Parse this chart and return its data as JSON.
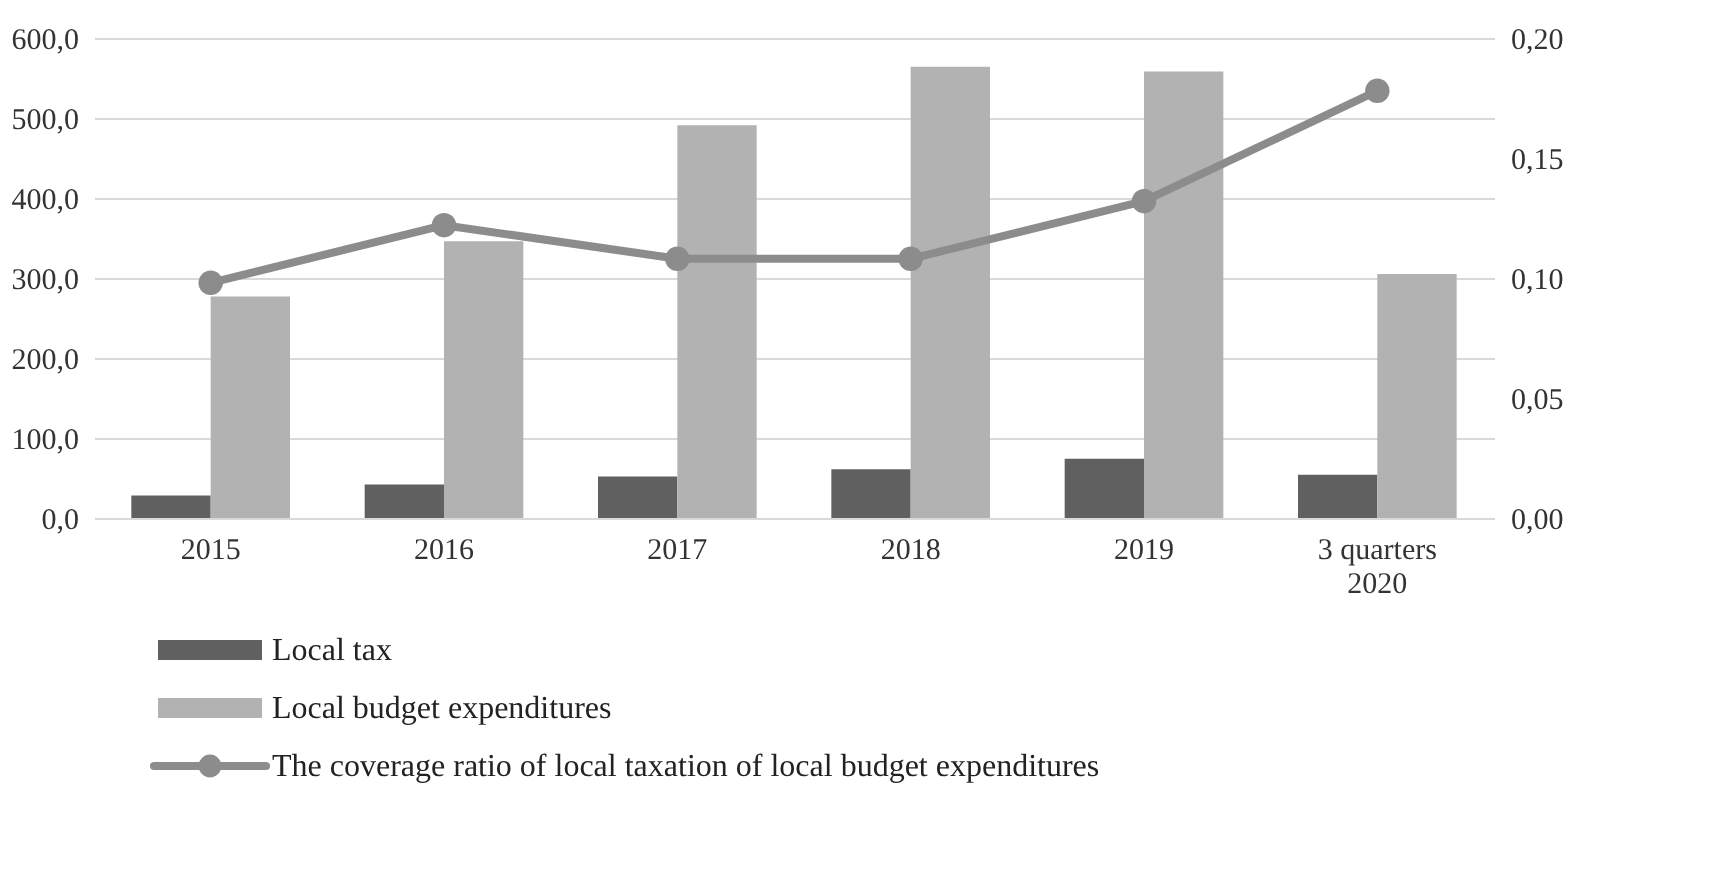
{
  "chart_data": {
    "type": "bar",
    "categories": [
      "2015",
      "2016",
      "2017",
      "2018",
      "2019",
      "3 quarters\n2020"
    ],
    "series": [
      {
        "name": "Local tax",
        "color": "#606060",
        "values": [
          28,
          42,
          52,
          61,
          74,
          54
        ]
      },
      {
        "name": "Local budget expenditures",
        "color": "#b2b2b2",
        "values": [
          277,
          346,
          491,
          564,
          558,
          305
        ]
      },
      {
        "name": "The coverage ratio of local taxation of local budget expenditures",
        "type": "line",
        "axis": "y2",
        "marker": "circle",
        "color": "#8c8c8c",
        "values": [
          0.098,
          0.122,
          0.108,
          0.108,
          0.132,
          0.178
        ]
      }
    ],
    "ylim": [
      0,
      600
    ],
    "yticks": [
      {
        "value": 0,
        "label": "0,0"
      },
      {
        "value": 100,
        "label": "100,0"
      },
      {
        "value": 200,
        "label": "200,0"
      },
      {
        "value": 300,
        "label": "300,0"
      },
      {
        "value": 400,
        "label": "400,0"
      },
      {
        "value": 500,
        "label": "500,0"
      },
      {
        "value": 600,
        "label": "600,0"
      }
    ],
    "y2lim": [
      0,
      0.2
    ],
    "y2ticks": [
      {
        "value": 0,
        "label": "0,00"
      },
      {
        "value": 0.05,
        "label": "0,05"
      },
      {
        "value": 0.1,
        "label": "0,10"
      },
      {
        "value": 0.15,
        "label": "0,15"
      },
      {
        "value": 0.2,
        "label": "0,20"
      }
    ],
    "grid": "y",
    "legend": "bottom"
  }
}
